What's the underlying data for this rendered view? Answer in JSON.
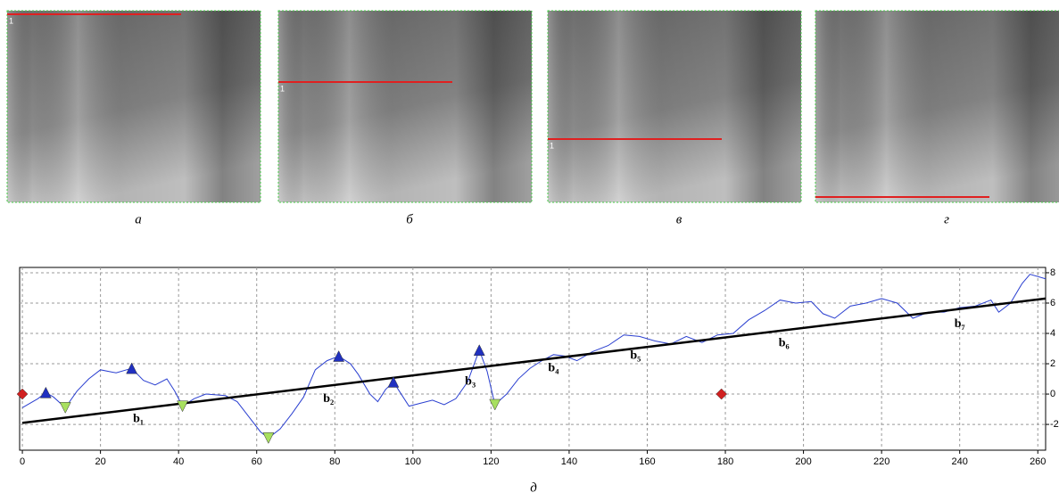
{
  "panels": [
    {
      "caption": "а",
      "row_label": "1"
    },
    {
      "caption": "б",
      "row_label": "1"
    },
    {
      "caption": "в",
      "row_label": "1"
    },
    {
      "caption": "г"
    }
  ],
  "chart_data": {
    "type": "line",
    "caption": "д",
    "xlim": [
      -0.7,
      262
    ],
    "ylim": [
      -3.7,
      8.35
    ],
    "xticks": [
      0,
      20,
      40,
      60,
      80,
      100,
      120,
      140,
      160,
      180,
      200,
      220,
      240,
      260
    ],
    "yticks": [
      -2,
      0,
      2,
      4,
      6,
      8
    ],
    "grid": true,
    "series": [
      {
        "color": "#2a3fd0",
        "x": [
          0,
          4,
          6,
          8,
          11,
          14,
          17,
          20,
          24,
          28,
          31,
          34,
          37,
          39,
          41,
          44,
          47,
          52,
          55,
          58,
          61,
          63,
          66,
          69,
          72,
          75,
          78,
          81,
          84,
          86,
          89,
          91,
          93,
          95,
          97,
          99,
          102,
          105,
          108,
          111,
          114,
          117,
          119,
          121,
          124,
          127,
          130,
          133,
          136,
          139,
          142,
          146,
          150,
          154,
          158,
          162,
          166,
          170,
          174,
          178,
          182,
          186,
          190,
          194,
          198,
          202,
          205,
          208,
          212,
          216,
          220,
          224,
          228,
          232,
          236,
          240,
          244,
          248,
          250,
          253,
          256,
          258,
          262
        ],
        "values": [
          -0.9,
          -0.3,
          0.1,
          -0.2,
          -0.9,
          0.2,
          1.0,
          1.6,
          1.4,
          1.7,
          0.9,
          0.6,
          1.0,
          0.2,
          -0.8,
          -0.3,
          0.0,
          -0.1,
          -0.5,
          -1.5,
          -2.5,
          -2.9,
          -2.3,
          -1.3,
          -0.2,
          1.6,
          2.2,
          2.5,
          2.0,
          1.3,
          0.0,
          -0.5,
          0.3,
          0.8,
          0.0,
          -0.8,
          -0.6,
          -0.4,
          -0.7,
          -0.3,
          0.8,
          2.9,
          1.5,
          -0.7,
          0.0,
          1.0,
          1.7,
          2.2,
          2.6,
          2.5,
          2.2,
          2.8,
          3.2,
          3.9,
          3.8,
          3.5,
          3.3,
          3.8,
          3.4,
          3.9,
          4.0,
          4.9,
          5.5,
          6.2,
          6.0,
          6.1,
          5.3,
          5.0,
          5.8,
          6.0,
          6.3,
          6.0,
          5.0,
          5.4,
          5.4,
          5.7,
          5.8,
          6.2,
          5.4,
          6.0,
          7.3,
          7.9,
          7.6
        ]
      },
      {
        "color": "#000000",
        "line_width": 2.5,
        "x": [
          0,
          262
        ],
        "values": [
          -1.9,
          6.3
        ]
      },
      {
        "color": "#d02020",
        "marker": "diamond",
        "x": [
          0,
          179
        ],
        "values": [
          0,
          0
        ]
      },
      {
        "color": "#2030c0",
        "marker": "triangle-up",
        "x": [
          6,
          28,
          81,
          95,
          117
        ],
        "values": [
          0.1,
          1.7,
          2.5,
          0.8,
          2.9
        ]
      },
      {
        "color": "#a8e060",
        "marker": "triangle-down",
        "x": [
          11,
          41,
          63,
          121
        ],
        "values": [
          -0.9,
          -0.8,
          -2.9,
          -0.7
        ]
      }
    ],
    "annotations": [
      {
        "text": "b₁",
        "x": 29.7,
        "y": -1.65
      },
      {
        "text": "b₂",
        "x": 78.4,
        "y": -0.35
      },
      {
        "text": "b₃",
        "x": 114.7,
        "y": 0.8
      },
      {
        "text": "b₄",
        "x": 136,
        "y": 1.7
      },
      {
        "text": "b₅",
        "x": 157,
        "y": 2.5
      },
      {
        "text": "b₆",
        "x": 195,
        "y": 3.35
      },
      {
        "text": "b₇",
        "x": 240,
        "y": 4.6
      }
    ]
  }
}
